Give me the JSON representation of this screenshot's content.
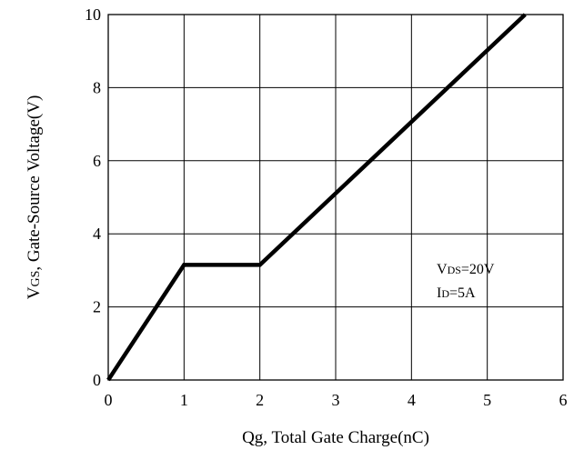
{
  "chart_data": {
    "type": "line",
    "title": "",
    "xlabel": "Qg, Total Gate Charge(nC)",
    "ylabel": {
      "prefix": "V",
      "sub": "GS",
      "rest": ", Gate-Source Voltage(V)"
    },
    "xlim": [
      0,
      6
    ],
    "ylim": [
      0,
      10
    ],
    "x_ticks": [
      "0",
      "1",
      "2",
      "3",
      "4",
      "5",
      "6"
    ],
    "y_ticks": [
      "0",
      "2",
      "4",
      "6",
      "8",
      "10"
    ],
    "grid": true,
    "series": [
      {
        "x": [
          0,
          1,
          2,
          5.5
        ],
        "y": [
          0,
          3.15,
          3.15,
          10
        ]
      }
    ],
    "annotations": [
      {
        "prefix": "V",
        "sub": "DS",
        "rest": "=20V"
      },
      {
        "prefix": "I",
        "sub": "D",
        "rest": "=5A"
      }
    ]
  }
}
